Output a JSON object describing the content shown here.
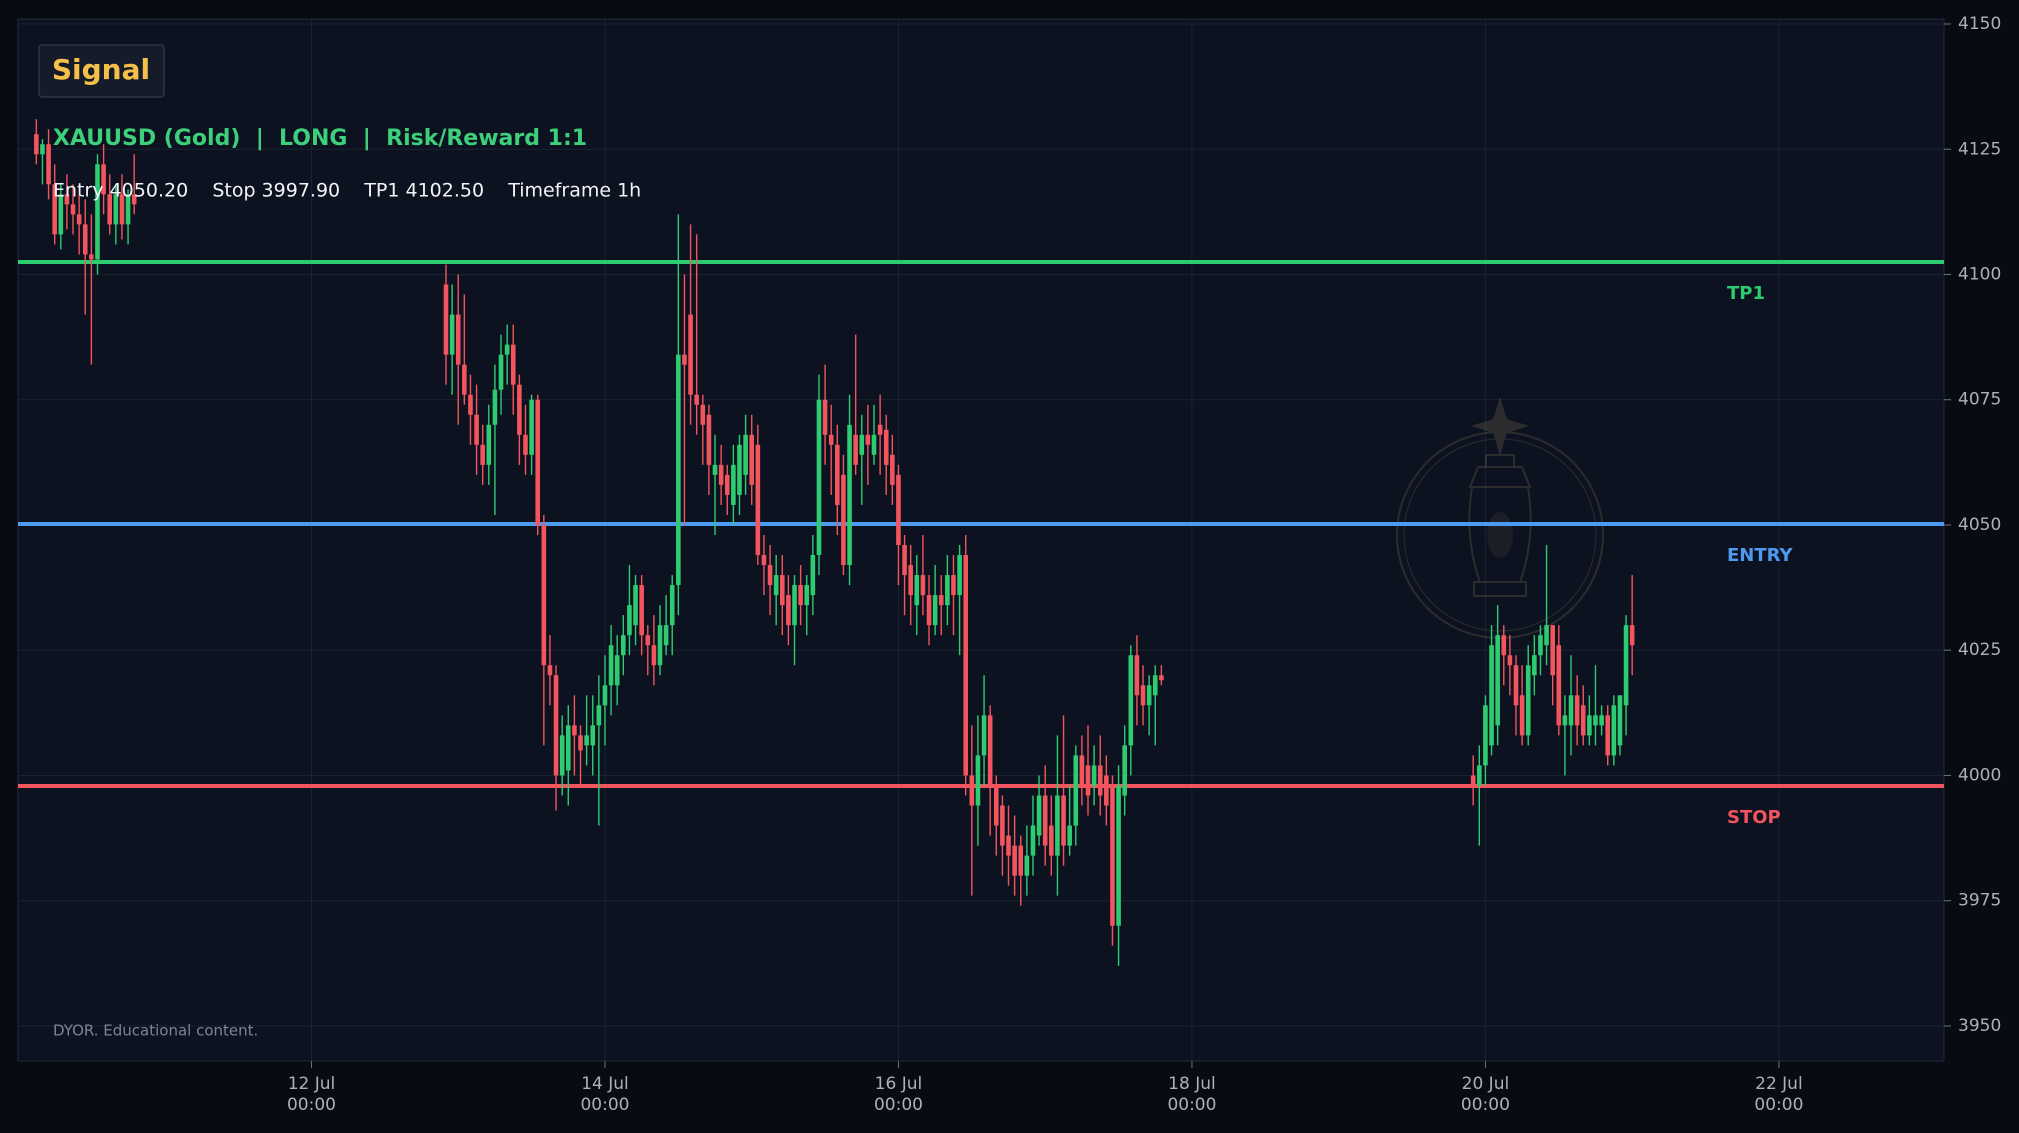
{
  "chart_data": {
    "type": "candlestick",
    "title": "Signal",
    "subtitle": "XAUUSD (Gold)  |  LONG  |  Risk/Reward 1:1",
    "info": "Entry 4050.20    Stop 3997.90    TP1 4102.50    Timeframe 1h",
    "footnote": "DYOR. Educational content.",
    "up_color": "#2ecc71",
    "down_color": "#f2555d",
    "grid": true,
    "ylim": [
      3943,
      4151
    ],
    "yticks": [
      3950,
      3975,
      4000,
      4025,
      4050,
      4075,
      4100,
      4125,
      4150
    ],
    "xlim": [
      "10 Jul 00:00",
      "23 Jul 03:00"
    ],
    "xticks": [
      {
        "value": "12 Jul 00:00",
        "label": "12 Jul\n00:00"
      },
      {
        "value": "14 Jul 00:00",
        "label": "14 Jul\n00:00"
      },
      {
        "value": "16 Jul 00:00",
        "label": "16 Jul\n00:00"
      },
      {
        "value": "18 Jul 00:00",
        "label": "18 Jul\n00:00"
      },
      {
        "value": "20 Jul 00:00",
        "label": "20 Jul\n00:00"
      },
      {
        "value": "22 Jul 00:00",
        "label": "22 Jul\n00:00"
      }
    ],
    "levels": [
      {
        "name": "TP1",
        "value": 4102.5,
        "color": "#2ecc71"
      },
      {
        "name": "ENTRY",
        "value": 4050.2,
        "color": "#4d9bf0"
      },
      {
        "name": "STOP",
        "value": 3997.9,
        "color": "#f2555d"
      }
    ],
    "candles": {
      "x": [
        "10 Jul 03:00",
        "10 Jul 04:00",
        "10 Jul 05:00",
        "10 Jul 06:00",
        "10 Jul 07:00",
        "10 Jul 08:00",
        "10 Jul 09:00",
        "10 Jul 10:00",
        "10 Jul 11:00",
        "10 Jul 12:00",
        "10 Jul 13:00",
        "10 Jul 14:00",
        "10 Jul 15:00",
        "10 Jul 16:00",
        "10 Jul 17:00",
        "10 Jul 18:00",
        "10 Jul 19:00",
        "12 Jul 22:00",
        "12 Jul 23:00",
        "13 Jul 00:00",
        "13 Jul 01:00",
        "13 Jul 02:00",
        "13 Jul 03:00",
        "13 Jul 04:00",
        "13 Jul 05:00",
        "13 Jul 06:00",
        "13 Jul 07:00",
        "13 Jul 08:00",
        "13 Jul 09:00",
        "13 Jul 10:00",
        "13 Jul 11:00",
        "13 Jul 12:00",
        "13 Jul 13:00",
        "13 Jul 14:00",
        "13 Jul 15:00",
        "13 Jul 16:00",
        "13 Jul 17:00",
        "13 Jul 18:00",
        "13 Jul 19:00",
        "13 Jul 20:00",
        "13 Jul 21:00",
        "13 Jul 22:00",
        "13 Jul 23:00",
        "14 Jul 00:00",
        "14 Jul 01:00",
        "14 Jul 02:00",
        "14 Jul 03:00",
        "14 Jul 04:00",
        "14 Jul 05:00",
        "14 Jul 06:00",
        "14 Jul 07:00",
        "14 Jul 08:00",
        "14 Jul 09:00",
        "14 Jul 10:00",
        "14 Jul 11:00",
        "14 Jul 12:00",
        "14 Jul 13:00",
        "14 Jul 14:00",
        "14 Jul 15:00",
        "14 Jul 16:00",
        "14 Jul 17:00",
        "14 Jul 18:00",
        "14 Jul 19:00",
        "14 Jul 20:00",
        "14 Jul 21:00",
        "14 Jul 22:00",
        "14 Jul 23:00",
        "15 Jul 00:00",
        "15 Jul 01:00",
        "15 Jul 02:00",
        "15 Jul 03:00",
        "15 Jul 04:00",
        "15 Jul 05:00",
        "15 Jul 06:00",
        "15 Jul 07:00",
        "15 Jul 08:00",
        "15 Jul 09:00",
        "15 Jul 10:00",
        "15 Jul 11:00",
        "15 Jul 12:00",
        "15 Jul 13:00",
        "15 Jul 14:00",
        "15 Jul 15:00",
        "15 Jul 16:00",
        "15 Jul 17:00",
        "15 Jul 18:00",
        "15 Jul 19:00",
        "15 Jul 20:00",
        "15 Jul 21:00",
        "15 Jul 22:00",
        "15 Jul 23:00",
        "16 Jul 00:00",
        "16 Jul 01:00",
        "16 Jul 02:00",
        "16 Jul 03:00",
        "16 Jul 04:00",
        "16 Jul 05:00",
        "16 Jul 06:00",
        "16 Jul 07:00",
        "16 Jul 08:00",
        "16 Jul 09:00",
        "16 Jul 10:00",
        "16 Jul 11:00",
        "16 Jul 12:00",
        "16 Jul 13:00",
        "16 Jul 14:00",
        "16 Jul 15:00",
        "16 Jul 16:00",
        "16 Jul 17:00",
        "16 Jul 18:00",
        "16 Jul 19:00",
        "16 Jul 20:00",
        "16 Jul 21:00",
        "16 Jul 22:00",
        "16 Jul 23:00",
        "17 Jul 00:00",
        "17 Jul 01:00",
        "17 Jul 02:00",
        "17 Jul 03:00",
        "17 Jul 04:00",
        "17 Jul 05:00",
        "17 Jul 06:00",
        "17 Jul 07:00",
        "17 Jul 08:00",
        "17 Jul 09:00",
        "17 Jul 10:00",
        "17 Jul 11:00",
        "17 Jul 12:00",
        "17 Jul 13:00",
        "17 Jul 14:00",
        "17 Jul 15:00",
        "17 Jul 16:00",
        "17 Jul 17:00",
        "17 Jul 18:00",
        "17 Jul 19:00",
        "19 Jul 22:00",
        "19 Jul 23:00",
        "20 Jul 00:00",
        "20 Jul 01:00",
        "20 Jul 02:00",
        "20 Jul 03:00",
        "20 Jul 04:00",
        "20 Jul 05:00",
        "20 Jul 06:00",
        "20 Jul 07:00",
        "20 Jul 08:00",
        "20 Jul 09:00",
        "20 Jul 10:00",
        "20 Jul 11:00",
        "20 Jul 12:00",
        "20 Jul 13:00",
        "20 Jul 14:00",
        "20 Jul 15:00",
        "20 Jul 16:00",
        "20 Jul 17:00",
        "20 Jul 18:00",
        "20 Jul 19:00",
        "20 Jul 20:00",
        "20 Jul 21:00",
        "20 Jul 22:00",
        "20 Jul 23:00",
        "21 Jul 00:00"
      ],
      "open": [
        4128,
        4124,
        4126,
        4118,
        4108,
        4116,
        4114,
        4112,
        4110,
        4104,
        4103,
        4122,
        4116,
        4110,
        4116,
        4110,
        4116,
        4098,
        4084,
        4092,
        4082,
        4076,
        4072,
        4066,
        4062,
        4070,
        4077,
        4084,
        4086,
        4078,
        4068,
        4064,
        4075,
        4050,
        4022,
        4020,
        4000,
        4001,
        4010,
        4008,
        4006,
        4006,
        4010,
        4014,
        4018,
        4018,
        4024,
        4028,
        4030,
        4038,
        4028,
        4026,
        4022,
        4026,
        4030,
        4038,
        4084,
        4092,
        4076,
        4074,
        4072,
        4060,
        4062,
        4060,
        4054,
        4056,
        4060,
        4068,
        4066,
        4044,
        4042,
        4036,
        4040,
        4036,
        4030,
        4038,
        4034,
        4036,
        4044,
        4075,
        4068,
        4066,
        4060,
        4042,
        4068,
        4064,
        4068,
        4064,
        4070,
        4069,
        4064,
        4060,
        4046,
        4042,
        4034,
        4040,
        4036,
        4030,
        4036,
        4034,
        4040,
        4036,
        4044,
        4000,
        3994,
        4004,
        4012,
        3998,
        3994,
        3988,
        3986,
        3986,
        3980,
        3984,
        3988,
        3996,
        3990,
        3984,
        3996,
        3986,
        3990,
        4004,
        4002,
        3998,
        4002,
        4000,
        3998,
        3970,
        3996,
        4006,
        4024,
        4018,
        4014,
        4016,
        4020,
        4000,
        3998,
        4002,
        4006,
        4010,
        4028,
        4024,
        4022,
        4016,
        4008,
        4020,
        4024,
        4026,
        4030,
        4026,
        4010,
        4010,
        4016,
        4014,
        4008,
        4010,
        4010,
        4012,
        4004,
        4006,
        4014,
        4030
      ],
      "high": [
        4131,
        4127,
        4129,
        4122,
        4118,
        4120,
        4118,
        4116,
        4115,
        4112,
        4124,
        4126,
        4120,
        4118,
        4120,
        4117,
        4124,
        4102,
        4098,
        4100,
        4096,
        4080,
        4078,
        4070,
        4074,
        4082,
        4088,
        4090,
        4090,
        4080,
        4074,
        4076,
        4076,
        4052,
        4028,
        4022,
        4012,
        4014,
        4016,
        4010,
        4016,
        4016,
        4020,
        4024,
        4030,
        4028,
        4032,
        4042,
        4040,
        4040,
        4030,
        4032,
        4034,
        4036,
        4040,
        4112,
        4100,
        4110,
        4108,
        4076,
        4074,
        4068,
        4066,
        4062,
        4066,
        4068,
        4072,
        4072,
        4070,
        4048,
        4046,
        4044,
        4044,
        4040,
        4040,
        4042,
        4040,
        4048,
        4080,
        4082,
        4074,
        4070,
        4064,
        4076,
        4088,
        4072,
        4074,
        4074,
        4076,
        4072,
        4068,
        4062,
        4048,
        4046,
        4044,
        4048,
        4040,
        4042,
        4040,
        4044,
        4044,
        4046,
        4048,
        4010,
        4012,
        4020,
        4014,
        4000,
        3996,
        3994,
        3992,
        3988,
        3990,
        3996,
        4000,
        4002,
        3996,
        4008,
        4012,
        3998,
        4006,
        4008,
        4010,
        4006,
        4008,
        4004,
        4000,
        4002,
        4010,
        4026,
        4028,
        4022,
        4020,
        4022,
        4022,
        4004,
        4006,
        4016,
        4030,
        4034,
        4030,
        4028,
        4024,
        4022,
        4026,
        4028,
        4030,
        4046,
        4030,
        4030,
        4016,
        4024,
        4020,
        4018,
        4016,
        4022,
        4014,
        4014,
        4016,
        4016,
        4032,
        4040
      ],
      "low": [
        4122,
        4118,
        4115,
        4106,
        4105,
        4109,
        4108,
        4104,
        4092,
        4082,
        4100,
        4112,
        4108,
        4106,
        4107,
        4106,
        4112,
        4078,
        4076,
        4070,
        4074,
        4066,
        4060,
        4058,
        4058,
        4052,
        4072,
        4078,
        4072,
        4062,
        4060,
        4060,
        4048,
        4006,
        4014,
        3993,
        3996,
        3994,
        4000,
        3998,
        4002,
        4000,
        3990,
        4006,
        4012,
        4014,
        4020,
        4024,
        4026,
        4024,
        4020,
        4018,
        4020,
        4024,
        4024,
        4032,
        4050,
        4070,
        4068,
        4062,
        4056,
        4048,
        4054,
        4052,
        4050,
        4052,
        4056,
        4054,
        4042,
        4036,
        4032,
        4030,
        4028,
        4026,
        4022,
        4030,
        4028,
        4032,
        4040,
        4062,
        4056,
        4048,
        4040,
        4038,
        4060,
        4054,
        4058,
        4062,
        4060,
        4056,
        4054,
        4038,
        4032,
        4030,
        4028,
        4032,
        4026,
        4028,
        4028,
        4030,
        4028,
        4024,
        3996,
        3976,
        3986,
        3998,
        3988,
        3984,
        3980,
        3978,
        3976,
        3974,
        3976,
        3980,
        3986,
        3982,
        3980,
        3976,
        3982,
        3984,
        3986,
        3994,
        3992,
        3994,
        3992,
        3990,
        3966,
        3962,
        3992,
        4000,
        4010,
        4010,
        4008,
        4006,
        4018,
        3994,
        3986,
        3998,
        4004,
        4006,
        4018,
        4016,
        4008,
        4006,
        4006,
        4016,
        4020,
        4022,
        4014,
        4008,
        4000,
        4004,
        4006,
        4006,
        4006,
        4006,
        4008,
        4002,
        4002,
        4004,
        4008,
        4020
      ],
      "close": [
        4124,
        4126,
        4118,
        4108,
        4116,
        4114,
        4112,
        4110,
        4104,
        4103,
        4122,
        4116,
        4110,
        4116,
        4110,
        4116,
        4114,
        4084,
        4092,
        4082,
        4076,
        4072,
        4066,
        4062,
        4070,
        4077,
        4084,
        4086,
        4078,
        4068,
        4064,
        4075,
        4050,
        4022,
        4020,
        4000,
        4008,
        4010,
        4008,
        4005,
        4008,
        4010,
        4014,
        4018,
        4026,
        4024,
        4028,
        4034,
        4038,
        4028,
        4026,
        4022,
        4030,
        4030,
        4038,
        4084,
        4082,
        4076,
        4074,
        4070,
        4062,
        4062,
        4058,
        4056,
        4062,
        4066,
        4068,
        4058,
        4044,
        4042,
        4038,
        4040,
        4034,
        4030,
        4038,
        4034,
        4038,
        4044,
        4075,
        4068,
        4066,
        4054,
        4042,
        4070,
        4062,
        4068,
        4066,
        4068,
        4068,
        4062,
        4058,
        4046,
        4040,
        4036,
        4040,
        4036,
        4030,
        4036,
        4034,
        4040,
        4036,
        4044,
        4000,
        3994,
        4004,
        4012,
        3998,
        3990,
        3986,
        3984,
        3980,
        3980,
        3984,
        3990,
        3996,
        3986,
        3984,
        3996,
        3986,
        3990,
        4004,
        3998,
        3996,
        4002,
        3996,
        3994,
        3970,
        3998,
        4006,
        4024,
        4016,
        4014,
        4018,
        4020,
        4019,
        3998,
        4002,
        4014,
        4026,
        4028,
        4024,
        4022,
        4014,
        4008,
        4022,
        4024,
        4028,
        4030,
        4020,
        4010,
        4012,
        4016,
        4010,
        4008,
        4012,
        4012,
        4012,
        4004,
        4014,
        4016,
        4030,
        4026
      ]
    }
  }
}
